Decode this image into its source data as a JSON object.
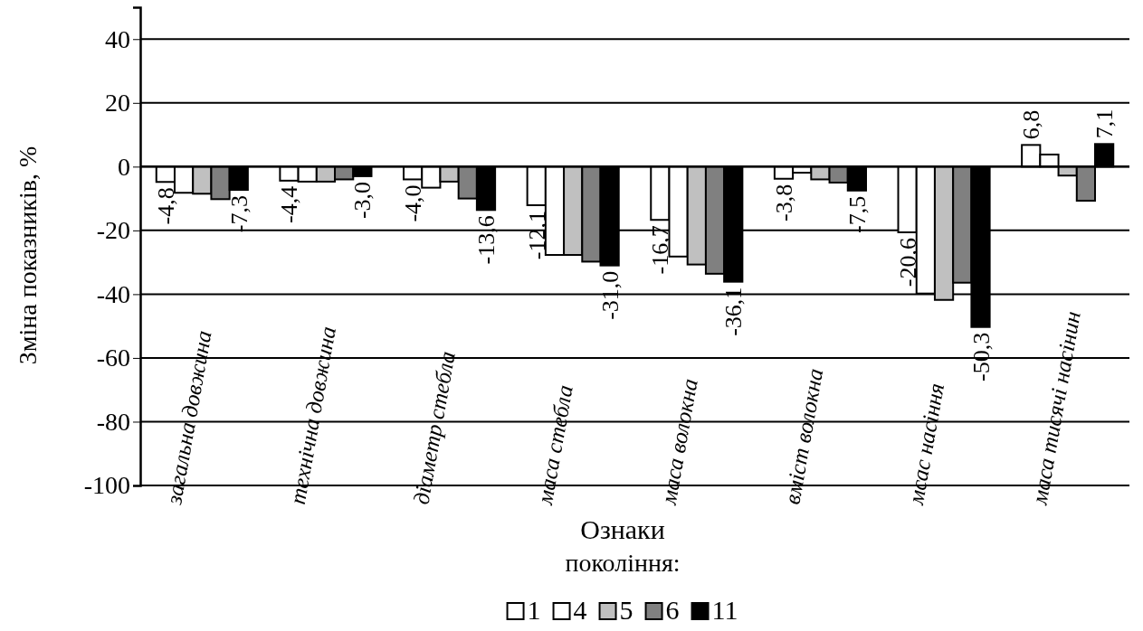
{
  "chart_data": {
    "type": "bar",
    "xlabel": "Ознаки",
    "ylabel": "Зміна показників, %",
    "legend_title": "покоління:",
    "categories": [
      "загальна довжина",
      "технічна довжина",
      "діаметр стебла",
      "маса стебла",
      "маса волокна",
      "вміст волокна",
      "мсас насіння",
      "маса тисячі насінин"
    ],
    "series": [
      {
        "name": "1",
        "color": "#ffffff",
        "values": [
          -4.8,
          -4.4,
          -4.0,
          -12.1,
          -16.7,
          -3.8,
          -20.6,
          6.8
        ],
        "value_labels": [
          "-4,8",
          "-4,4",
          "-4,0",
          "-12,1",
          "-16,7",
          "-3,8",
          "-20,6",
          "6,8"
        ]
      },
      {
        "name": "4",
        "color": "#ffffff",
        "values": [
          -8.2,
          -4.7,
          -6.6,
          -27.7,
          -28.2,
          -1.9,
          -39.8,
          3.8
        ]
      },
      {
        "name": "5",
        "color": "#c0c0c0",
        "values": [
          -8.5,
          -4.7,
          -4.7,
          -27.7,
          -30.7,
          -4.0,
          -41.8,
          -2.8
        ]
      },
      {
        "name": "6",
        "color": "#808080",
        "values": [
          -10.2,
          -4.0,
          -10.0,
          -29.8,
          -33.6,
          -5.0,
          -36.4,
          -10.7
        ]
      },
      {
        "name": "11",
        "color": "#000000",
        "values": [
          -7.3,
          -3.0,
          -13.6,
          -31.0,
          -36.1,
          -7.5,
          -50.3,
          7.1
        ],
        "value_labels": [
          "-7,3",
          "-3,0",
          "-13,6",
          "-31,0",
          "-36,1",
          "-7,5",
          "-50,3",
          "7,1"
        ]
      }
    ],
    "ylim": [
      -100,
      50
    ],
    "yticks": [
      -100,
      -80,
      -60,
      -40,
      -20,
      0,
      20,
      40
    ],
    "grid": "y",
    "legend": "bottom"
  }
}
